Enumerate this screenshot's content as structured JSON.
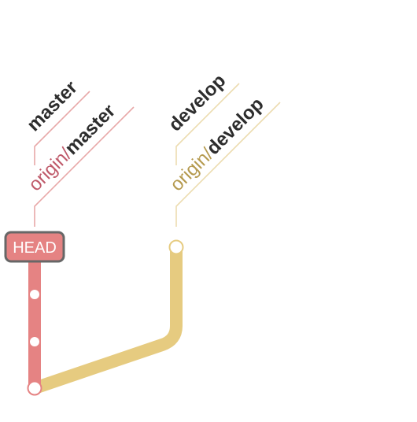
{
  "colors": {
    "master": "#e58383",
    "master_light": "#e8a8a8",
    "master_prefix": "#bf5a6a",
    "develop": "#e6cb80",
    "develop_light": "#ecdcb0",
    "develop_prefix": "#b59a4f",
    "text_dark": "#2d2d2d",
    "head_border": "#676767",
    "head_text": "#ffffff"
  },
  "branches": {
    "master": {
      "local": "master",
      "remote_prefix": "origin/",
      "remote_name": "master"
    },
    "develop": {
      "local": "develop",
      "remote_prefix": "origin/",
      "remote_name": "develop"
    }
  },
  "head": {
    "label": "HEAD"
  }
}
